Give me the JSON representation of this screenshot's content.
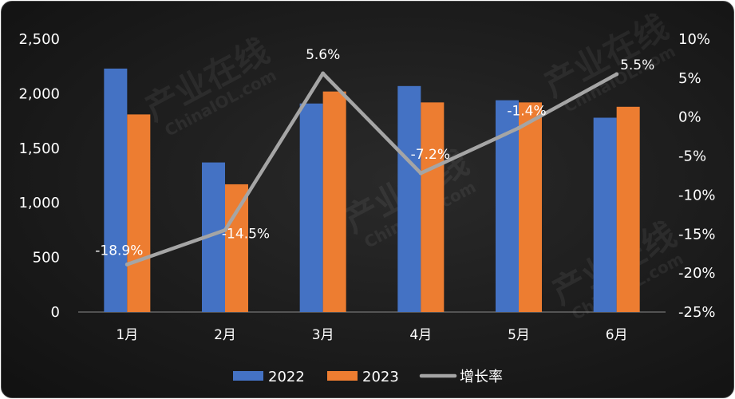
{
  "chart_data": {
    "type": "bar",
    "categories": [
      "1月",
      "2月",
      "3月",
      "4月",
      "5月",
      "6月"
    ],
    "series": [
      {
        "name": "2022",
        "type": "bar",
        "axis": "left",
        "color": "#4472C4",
        "values": [
          2230,
          1370,
          1910,
          2070,
          1940,
          1780
        ]
      },
      {
        "name": "2023",
        "type": "bar",
        "axis": "left",
        "color": "#ED7D31",
        "values": [
          1810,
          1170,
          2020,
          1920,
          1920,
          1880
        ]
      },
      {
        "name": "增长率",
        "type": "line",
        "axis": "right",
        "color": "#A5A5A5",
        "values": [
          -18.9,
          -14.5,
          5.6,
          -7.2,
          -1.4,
          5.5
        ]
      }
    ],
    "data_labels": [
      "-18.9%",
      "-14.5%",
      "5.6%",
      "-7.2%",
      "-1.4%",
      "5.5%"
    ],
    "y_left": {
      "ylim": [
        0,
        2500
      ],
      "ticks": [
        0,
        500,
        1000,
        1500,
        2000,
        2500
      ],
      "tick_labels": [
        "0",
        "500",
        "1,000",
        "1,500",
        "2,000",
        "2,500"
      ]
    },
    "y_right": {
      "ylim": [
        -25,
        10
      ],
      "ticks": [
        10,
        5,
        0,
        -5,
        -10,
        -15,
        -20,
        -25
      ],
      "tick_labels": [
        "10%",
        "5%",
        "0%",
        "-5%",
        "-10%",
        "-15%",
        "-20%",
        "-25%"
      ]
    },
    "title": "",
    "xlabel": "",
    "ylabel": "",
    "grid": false,
    "legend_position": "bottom"
  },
  "watermark": {
    "brand": "产业在线",
    "site": "ChinaIOL.com"
  }
}
